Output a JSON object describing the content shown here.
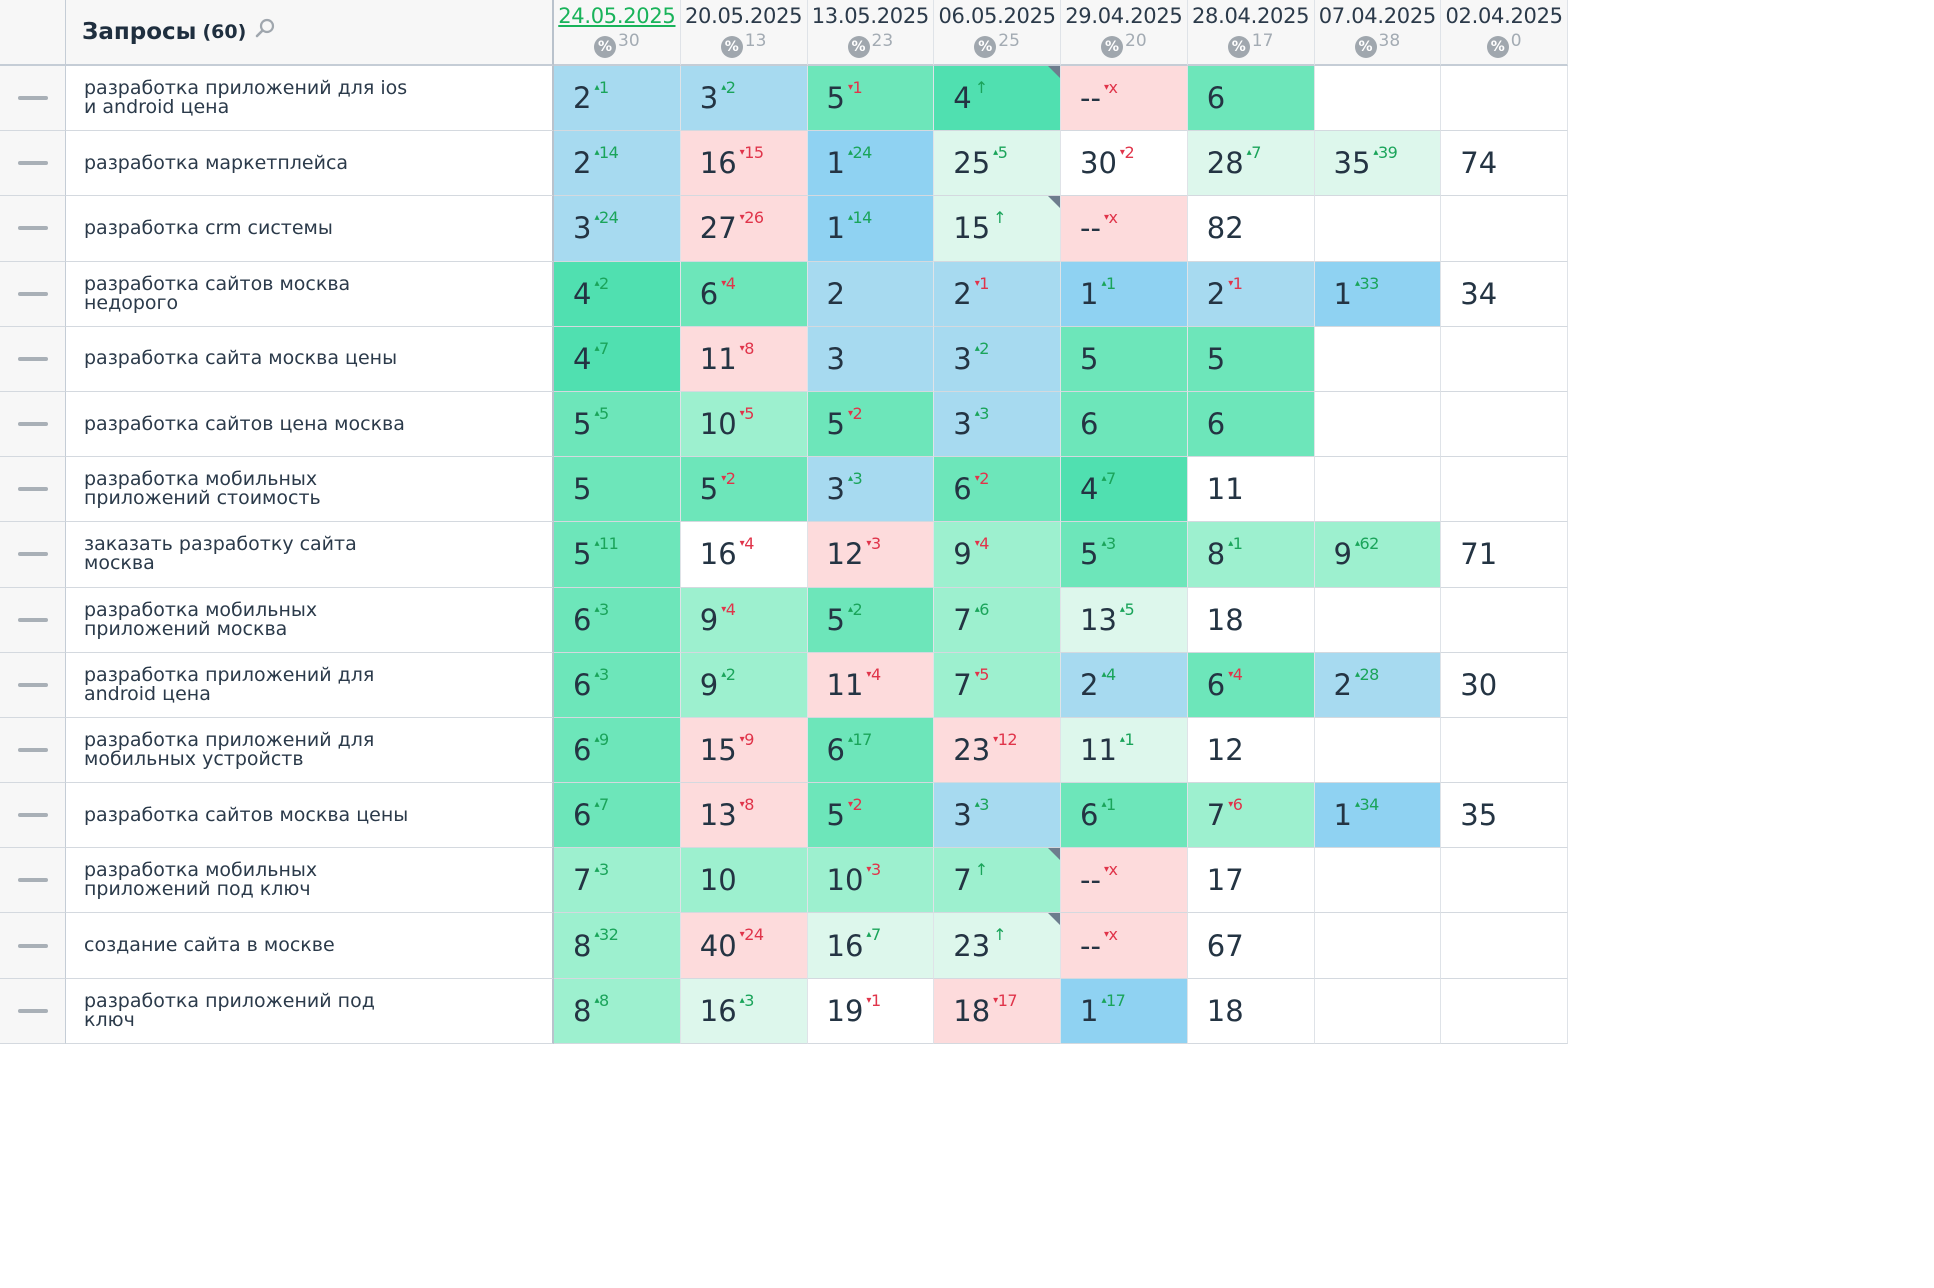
{
  "header": {
    "title": "Запросы",
    "count": "(60)",
    "percent_symbol": "%",
    "dates": [
      {
        "date": "24.05.2025",
        "count": "30",
        "active": true
      },
      {
        "date": "20.05.2025",
        "count": "13"
      },
      {
        "date": "13.05.2025",
        "count": "23"
      },
      {
        "date": "06.05.2025",
        "count": "25"
      },
      {
        "date": "29.04.2025",
        "count": "20"
      },
      {
        "date": "28.04.2025",
        "count": "17"
      },
      {
        "date": "07.04.2025",
        "count": "38"
      },
      {
        "date": "02.04.2025",
        "count": "0"
      }
    ]
  },
  "colors": {
    "dg": "#50e0b0",
    "mg": "#6de6ba",
    "lg": "#9df0cf",
    "vlg": "#ddf7ec",
    "lb": "#a7daf0",
    "mb": "#8fd2f2",
    "pk": "#fddbdc",
    "w": "#ffffff",
    "up": "#1aa45a",
    "down": "#e0344a",
    "active_date": "#19b35a"
  },
  "rows": [
    {
      "query": "разработка приложений для ios и android цена",
      "cells": [
        {
          "v": "2",
          "d": "1",
          "dir": "up",
          "c": "lb"
        },
        {
          "v": "3",
          "d": "2",
          "dir": "up",
          "c": "lb"
        },
        {
          "v": "5",
          "d": "1",
          "dir": "down",
          "c": "mg"
        },
        {
          "v": "4",
          "d": "↑",
          "dir": "upnew",
          "c": "dg",
          "mark": true
        },
        {
          "v": "--",
          "d": "x",
          "dir": "down",
          "c": "pk"
        },
        {
          "v": "6",
          "c": "mg"
        },
        {
          "v": "",
          "c": "w"
        },
        {
          "v": "",
          "c": "w"
        }
      ]
    },
    {
      "query": "разработка маркетплейса",
      "cells": [
        {
          "v": "2",
          "d": "14",
          "dir": "up",
          "c": "lb"
        },
        {
          "v": "16",
          "d": "15",
          "dir": "down",
          "c": "pk"
        },
        {
          "v": "1",
          "d": "24",
          "dir": "up",
          "c": "mb"
        },
        {
          "v": "25",
          "d": "5",
          "dir": "up",
          "c": "vlg"
        },
        {
          "v": "30",
          "d": "2",
          "dir": "down",
          "c": "w"
        },
        {
          "v": "28",
          "d": "7",
          "dir": "up",
          "c": "vlg"
        },
        {
          "v": "35",
          "d": "39",
          "dir": "up",
          "c": "vlg"
        },
        {
          "v": "74",
          "c": "w"
        }
      ]
    },
    {
      "query": "разработка crm системы",
      "cells": [
        {
          "v": "3",
          "d": "24",
          "dir": "up",
          "c": "lb"
        },
        {
          "v": "27",
          "d": "26",
          "dir": "down",
          "c": "pk"
        },
        {
          "v": "1",
          "d": "14",
          "dir": "up",
          "c": "mb"
        },
        {
          "v": "15",
          "d": "↑",
          "dir": "upnew",
          "c": "vlg",
          "mark": true
        },
        {
          "v": "--",
          "d": "x",
          "dir": "down",
          "c": "pk"
        },
        {
          "v": "82",
          "c": "w"
        },
        {
          "v": "",
          "c": "w"
        },
        {
          "v": "",
          "c": "w"
        }
      ]
    },
    {
      "query": "разработка сайтов москва недорого",
      "cells": [
        {
          "v": "4",
          "d": "2",
          "dir": "up",
          "c": "dg"
        },
        {
          "v": "6",
          "d": "4",
          "dir": "down",
          "c": "mg"
        },
        {
          "v": "2",
          "c": "lb"
        },
        {
          "v": "2",
          "d": "1",
          "dir": "down",
          "c": "lb"
        },
        {
          "v": "1",
          "d": "1",
          "dir": "up",
          "c": "mb"
        },
        {
          "v": "2",
          "d": "1",
          "dir": "down",
          "c": "lb"
        },
        {
          "v": "1",
          "d": "33",
          "dir": "up",
          "c": "mb"
        },
        {
          "v": "34",
          "c": "w"
        }
      ]
    },
    {
      "query": "разработка сайта москва цены",
      "cells": [
        {
          "v": "4",
          "d": "7",
          "dir": "up",
          "c": "dg"
        },
        {
          "v": "11",
          "d": "8",
          "dir": "down",
          "c": "pk"
        },
        {
          "v": "3",
          "c": "lb"
        },
        {
          "v": "3",
          "d": "2",
          "dir": "up",
          "c": "lb"
        },
        {
          "v": "5",
          "c": "mg"
        },
        {
          "v": "5",
          "c": "mg"
        },
        {
          "v": "",
          "c": "w"
        },
        {
          "v": "",
          "c": "w"
        }
      ]
    },
    {
      "query": "разработка сайтов цена москва",
      "cells": [
        {
          "v": "5",
          "d": "5",
          "dir": "up",
          "c": "mg"
        },
        {
          "v": "10",
          "d": "5",
          "dir": "down",
          "c": "lg"
        },
        {
          "v": "5",
          "d": "2",
          "dir": "down",
          "c": "mg"
        },
        {
          "v": "3",
          "d": "3",
          "dir": "up",
          "c": "lb"
        },
        {
          "v": "6",
          "c": "mg"
        },
        {
          "v": "6",
          "c": "mg"
        },
        {
          "v": "",
          "c": "w"
        },
        {
          "v": "",
          "c": "w"
        }
      ]
    },
    {
      "query": "разработка мобильных приложений стоимость",
      "cells": [
        {
          "v": "5",
          "c": "mg"
        },
        {
          "v": "5",
          "d": "2",
          "dir": "down",
          "c": "mg"
        },
        {
          "v": "3",
          "d": "3",
          "dir": "up",
          "c": "lb"
        },
        {
          "v": "6",
          "d": "2",
          "dir": "down",
          "c": "mg"
        },
        {
          "v": "4",
          "d": "7",
          "dir": "up",
          "c": "dg"
        },
        {
          "v": "11",
          "c": "w"
        },
        {
          "v": "",
          "c": "w"
        },
        {
          "v": "",
          "c": "w"
        }
      ]
    },
    {
      "query": "заказать разработку сайта москва",
      "cells": [
        {
          "v": "5",
          "d": "11",
          "dir": "up",
          "c": "mg"
        },
        {
          "v": "16",
          "d": "4",
          "dir": "down",
          "c": "w"
        },
        {
          "v": "12",
          "d": "3",
          "dir": "down",
          "c": "pk"
        },
        {
          "v": "9",
          "d": "4",
          "dir": "down",
          "c": "lg"
        },
        {
          "v": "5",
          "d": "3",
          "dir": "up",
          "c": "mg"
        },
        {
          "v": "8",
          "d": "1",
          "dir": "up",
          "c": "lg"
        },
        {
          "v": "9",
          "d": "62",
          "dir": "up",
          "c": "lg"
        },
        {
          "v": "71",
          "c": "w"
        }
      ]
    },
    {
      "query": "разработка мобильных приложений москва",
      "cells": [
        {
          "v": "6",
          "d": "3",
          "dir": "up",
          "c": "mg"
        },
        {
          "v": "9",
          "d": "4",
          "dir": "down",
          "c": "lg"
        },
        {
          "v": "5",
          "d": "2",
          "dir": "up",
          "c": "mg"
        },
        {
          "v": "7",
          "d": "6",
          "dir": "up",
          "c": "lg"
        },
        {
          "v": "13",
          "d": "5",
          "dir": "up",
          "c": "vlg"
        },
        {
          "v": "18",
          "c": "w"
        },
        {
          "v": "",
          "c": "w"
        },
        {
          "v": "",
          "c": "w"
        }
      ]
    },
    {
      "query": "разработка приложений для android цена",
      "cells": [
        {
          "v": "6",
          "d": "3",
          "dir": "up",
          "c": "mg"
        },
        {
          "v": "9",
          "d": "2",
          "dir": "up",
          "c": "lg"
        },
        {
          "v": "11",
          "d": "4",
          "dir": "down",
          "c": "pk"
        },
        {
          "v": "7",
          "d": "5",
          "dir": "down",
          "c": "lg"
        },
        {
          "v": "2",
          "d": "4",
          "dir": "up",
          "c": "lb"
        },
        {
          "v": "6",
          "d": "4",
          "dir": "down",
          "c": "mg"
        },
        {
          "v": "2",
          "d": "28",
          "dir": "up",
          "c": "lb"
        },
        {
          "v": "30",
          "c": "w"
        }
      ]
    },
    {
      "query": "разработка приложений для мобильных устройств",
      "cells": [
        {
          "v": "6",
          "d": "9",
          "dir": "up",
          "c": "mg"
        },
        {
          "v": "15",
          "d": "9",
          "dir": "down",
          "c": "pk"
        },
        {
          "v": "6",
          "d": "17",
          "dir": "up",
          "c": "mg"
        },
        {
          "v": "23",
          "d": "12",
          "dir": "down",
          "c": "pk"
        },
        {
          "v": "11",
          "d": "1",
          "dir": "up",
          "c": "vlg"
        },
        {
          "v": "12",
          "c": "w"
        },
        {
          "v": "",
          "c": "w"
        },
        {
          "v": "",
          "c": "w"
        }
      ]
    },
    {
      "query": "разработка сайтов москва цены",
      "cells": [
        {
          "v": "6",
          "d": "7",
          "dir": "up",
          "c": "mg"
        },
        {
          "v": "13",
          "d": "8",
          "dir": "down",
          "c": "pk"
        },
        {
          "v": "5",
          "d": "2",
          "dir": "down",
          "c": "mg"
        },
        {
          "v": "3",
          "d": "3",
          "dir": "up",
          "c": "lb"
        },
        {
          "v": "6",
          "d": "1",
          "dir": "up",
          "c": "mg"
        },
        {
          "v": "7",
          "d": "6",
          "dir": "down",
          "c": "lg"
        },
        {
          "v": "1",
          "d": "34",
          "dir": "up",
          "c": "mb"
        },
        {
          "v": "35",
          "c": "w"
        }
      ]
    },
    {
      "query": "разработка мобильных приложений под ключ",
      "cells": [
        {
          "v": "7",
          "d": "3",
          "dir": "up",
          "c": "lg"
        },
        {
          "v": "10",
          "c": "lg"
        },
        {
          "v": "10",
          "d": "3",
          "dir": "down",
          "c": "lg"
        },
        {
          "v": "7",
          "d": "↑",
          "dir": "upnew",
          "c": "lg",
          "mark": true
        },
        {
          "v": "--",
          "d": "x",
          "dir": "down",
          "c": "pk"
        },
        {
          "v": "17",
          "c": "w"
        },
        {
          "v": "",
          "c": "w"
        },
        {
          "v": "",
          "c": "w"
        }
      ]
    },
    {
      "query": "создание сайта в москве",
      "cells": [
        {
          "v": "8",
          "d": "32",
          "dir": "up",
          "c": "lg"
        },
        {
          "v": "40",
          "d": "24",
          "dir": "down",
          "c": "pk"
        },
        {
          "v": "16",
          "d": "7",
          "dir": "up",
          "c": "vlg"
        },
        {
          "v": "23",
          "d": "↑",
          "dir": "upnew",
          "c": "vlg",
          "mark": true
        },
        {
          "v": "--",
          "d": "x",
          "dir": "down",
          "c": "pk"
        },
        {
          "v": "67",
          "c": "w"
        },
        {
          "v": "",
          "c": "w"
        },
        {
          "v": "",
          "c": "w"
        }
      ]
    },
    {
      "query": "разработка приложений под ключ",
      "cells": [
        {
          "v": "8",
          "d": "8",
          "dir": "up",
          "c": "lg"
        },
        {
          "v": "16",
          "d": "3",
          "dir": "up",
          "c": "vlg"
        },
        {
          "v": "19",
          "d": "1",
          "dir": "down",
          "c": "w"
        },
        {
          "v": "18",
          "d": "17",
          "dir": "down",
          "c": "pk"
        },
        {
          "v": "1",
          "d": "17",
          "dir": "up",
          "c": "mb"
        },
        {
          "v": "18",
          "c": "w"
        },
        {
          "v": "",
          "c": "w"
        },
        {
          "v": "",
          "c": "w"
        }
      ]
    }
  ]
}
